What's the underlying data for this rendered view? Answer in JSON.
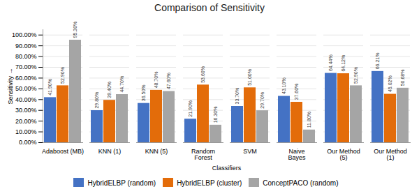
{
  "chart_data": {
    "type": "bar",
    "title": "Comparison of Sensitivity",
    "xlabel": "Classifiers",
    "ylabel": "Sensitivity",
    "categories": [
      "Adaboost (MB)",
      "KNN (1)",
      "KNN (5)",
      "Random\nForest",
      "SVM",
      "Naive\nBayes",
      "Our Method\n(5)",
      "Our Method\n(1)"
    ],
    "series": [
      {
        "name": "HybridELBP (random)",
        "color": "#4472c4",
        "values": [
          41.9,
          29.8,
          36.5,
          21.9,
          33.7,
          43.1,
          64.44,
          66.21
        ],
        "value_labels": [
          "41.90%",
          "29.80%",
          "36.50%",
          "21.90%",
          "33.70%",
          "43.10%",
          "64.44%",
          "66.21%"
        ]
      },
      {
        "name": "HybridELBP (cluster)",
        "color": "#e36c0a",
        "values": [
          52.9,
          39.4,
          48.7,
          53.6,
          51.0,
          37.6,
          64.12,
          45.02
        ],
        "value_labels": [
          "52.90%",
          "39.40%",
          "48.70%",
          "53.60%",
          "51.00%",
          "37.60%",
          "64.12%",
          "45.02%"
        ]
      },
      {
        "name": "ConceptPACO (random)",
        "color": "#a5a5a5",
        "values": [
          95.3,
          44.7,
          47.6,
          16.3,
          29.7,
          11.8,
          52.9,
          50.68
        ],
        "value_labels": [
          "95.30%",
          "44.70%",
          "47.60%",
          "16.30%",
          "29.70%",
          "11.80%",
          "52.90%",
          "50.68%"
        ]
      }
    ],
    "ylim": [
      0,
      105
    ],
    "yticks": [
      {
        "value": 0,
        "label": "0.00%"
      },
      {
        "value": 10,
        "label": "10.00%"
      },
      {
        "value": 20,
        "label": "20.00%"
      },
      {
        "value": 30,
        "label": "30.00%"
      },
      {
        "value": 40,
        "label": "40.00%"
      },
      {
        "value": 50,
        "label": "50.00%"
      },
      {
        "value": 60,
        "label": "60.00%"
      },
      {
        "value": 70,
        "label": "70.00%"
      },
      {
        "value": 80,
        "label": "80.00%"
      },
      {
        "value": 90,
        "label": "90.00%"
      },
      {
        "value": 100,
        "label": "100.00%"
      }
    ],
    "grid": true,
    "legend": "bottom",
    "data_labels": true
  }
}
